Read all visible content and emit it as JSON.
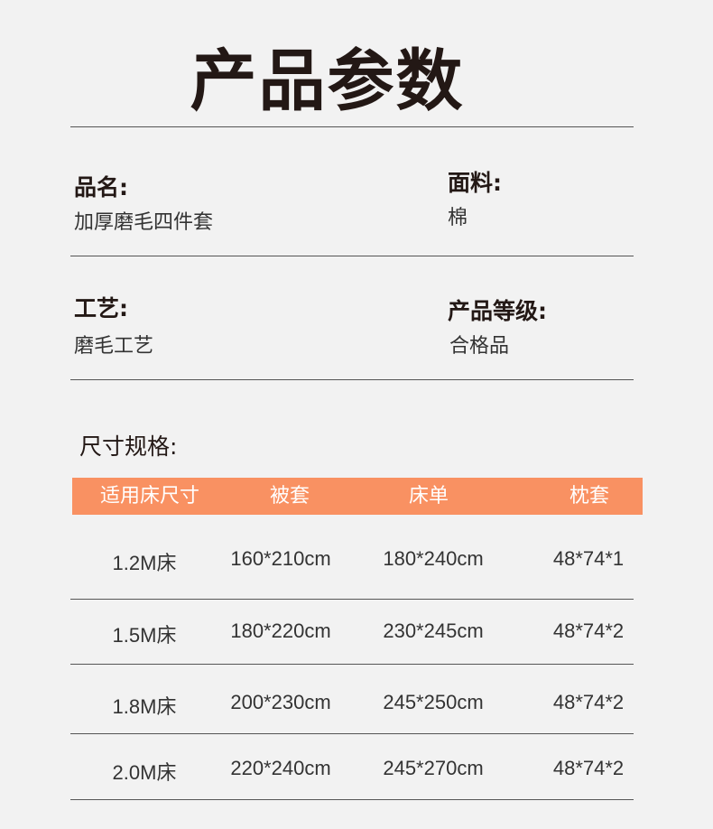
{
  "title": "产品参数",
  "fields": [
    {
      "label": "品名:",
      "value": "加厚磨毛四件套"
    },
    {
      "label": "面料:",
      "value": "棉"
    },
    {
      "label": "工艺:",
      "value": "磨毛工艺"
    },
    {
      "label": "产品等级:",
      "value": "合格品"
    }
  ],
  "size_section": {
    "label": "尺寸规格:"
  },
  "table": {
    "header_color": "#f99162",
    "headers": [
      "适用床尺寸",
      "被套",
      "床单",
      "枕套"
    ],
    "rows": [
      [
        "1.2M床",
        "160*210cm",
        "180*240cm",
        "48*74*1"
      ],
      [
        "1.5M床",
        "180*220cm",
        "230*245cm",
        "48*74*2"
      ],
      [
        "1.8M床",
        "200*230cm",
        "245*250cm",
        "48*74*2"
      ],
      [
        "2.0M床",
        "220*240cm",
        "245*270cm",
        "48*74*2"
      ]
    ]
  }
}
